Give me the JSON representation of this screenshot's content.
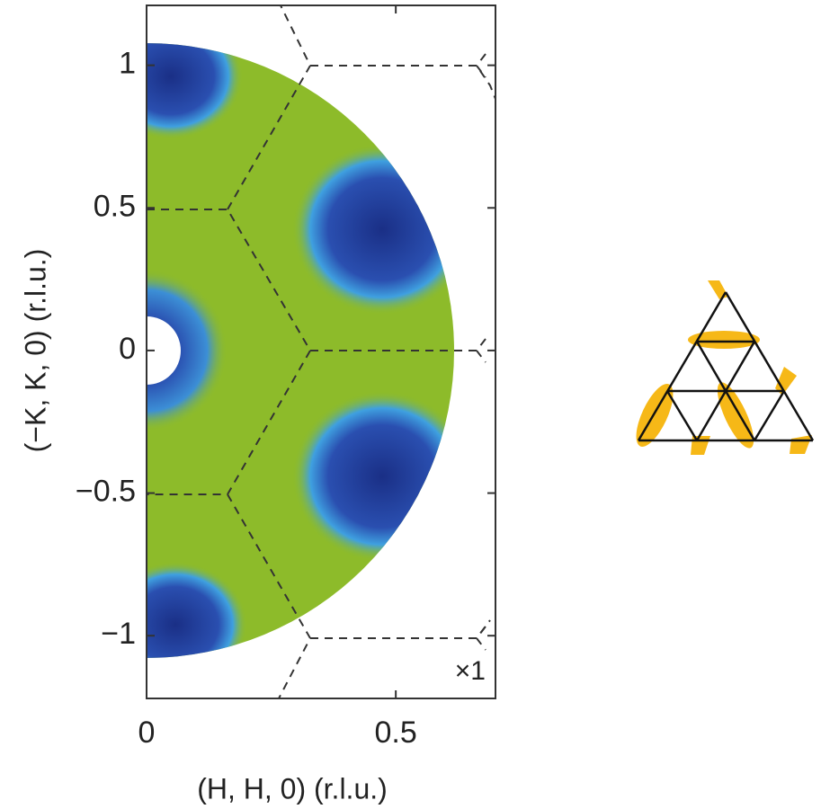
{
  "chart_data": {
    "type": "heatmap",
    "xlabel": "(H, H, 0) (r.l.u.)",
    "ylabel": "(−K, K, 0) (r.l.u.)",
    "annotation": "×1",
    "xlim": [
      0,
      0.7
    ],
    "ylim": [
      -1.22,
      1.21
    ],
    "xticks": [
      0,
      0.5
    ],
    "yticks": [
      {
        "value": -1,
        "label": "−1"
      },
      {
        "value": -0.5,
        "label": "−0.5"
      },
      0,
      0.5,
      1
    ]
  }
}
